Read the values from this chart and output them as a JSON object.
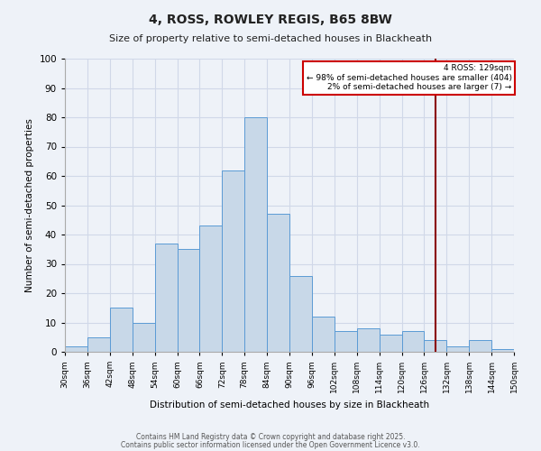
{
  "title": "4, ROSS, ROWLEY REGIS, B65 8BW",
  "subtitle": "Size of property relative to semi-detached houses in Blackheath",
  "xlabel": "Distribution of semi-detached houses by size in Blackheath",
  "ylabel": "Number of semi-detached properties",
  "bin_edges": [
    30,
    36,
    42,
    48,
    54,
    60,
    66,
    72,
    78,
    84,
    90,
    96,
    102,
    108,
    114,
    120,
    126,
    132,
    138,
    144,
    150
  ],
  "counts": [
    2,
    5,
    15,
    10,
    37,
    35,
    43,
    62,
    80,
    47,
    26,
    12,
    7,
    8,
    6,
    7,
    4,
    2,
    4,
    1
  ],
  "bar_facecolor": "#c8d8e8",
  "bar_edgecolor": "#5b9bd5",
  "grid_color": "#d0d8e8",
  "background_color": "#eef2f8",
  "property_value": 129,
  "vline_color": "#8b0000",
  "annotation_line1": "4 ROSS: 129sqm",
  "annotation_line2": "← 98% of semi-detached houses are smaller (404)",
  "annotation_line3": "2% of semi-detached houses are larger (7) →",
  "annotation_box_edgecolor": "#cc0000",
  "annotation_box_facecolor": "#ffffff",
  "footer_line1": "Contains HM Land Registry data © Crown copyright and database right 2025.",
  "footer_line2": "Contains public sector information licensed under the Open Government Licence v3.0.",
  "ylim": [
    0,
    100
  ],
  "yticks": [
    0,
    10,
    20,
    30,
    40,
    50,
    60,
    70,
    80,
    90,
    100
  ]
}
